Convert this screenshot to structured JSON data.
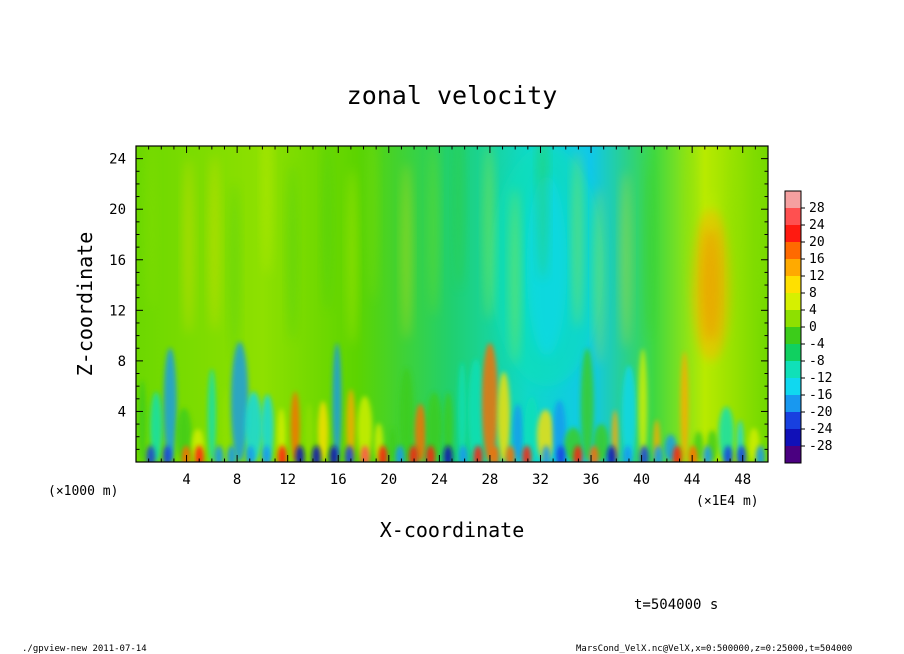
{
  "chart_data": {
    "type": "heatmap",
    "title": "zonal velocity",
    "xlabel": "X-coordinate",
    "ylabel": "Z-coordinate",
    "x_unit_note": "(×1E4 m)",
    "y_unit_note": "(×1000 m)",
    "xlim": [
      0,
      50
    ],
    "ylim": [
      0,
      25
    ],
    "x_ticks": [
      4,
      8,
      12,
      16,
      20,
      24,
      28,
      32,
      36,
      40,
      44,
      48
    ],
    "y_ticks": [
      4,
      8,
      12,
      16,
      20,
      24
    ],
    "colorbar_levels": [
      28,
      24,
      20,
      16,
      12,
      8,
      4,
      0,
      -4,
      -8,
      -12,
      -16,
      -20,
      -24,
      -28
    ],
    "colorbar_colors": [
      "#f5a0a0",
      "#ff5050",
      "#ff1a10",
      "#ff6a00",
      "#ffaa00",
      "#ffe000",
      "#d6f000",
      "#8ee000",
      "#3ccc1a",
      "#10d060",
      "#10e0b8",
      "#10d8f0",
      "#1898f0",
      "#1840e0",
      "#1010b8",
      "#4a0080"
    ],
    "features": [
      {
        "x_range": [
          28,
          37
        ],
        "z_range": [
          6,
          25
        ],
        "value_range": [
          -16,
          -8
        ],
        "description": "negative (blue) column"
      },
      {
        "x_range": [
          44,
          47
        ],
        "z_range": [
          8,
          20
        ],
        "value_range": [
          8,
          16
        ],
        "description": "positive (orange) column"
      },
      {
        "x_range": [
          0,
          50
        ],
        "z_range": [
          0,
          10
        ],
        "value_range": [
          -28,
          20
        ],
        "description": "alternating cells near surface"
      }
    ]
  },
  "annotations": {
    "time_label": "t=504000 s",
    "footer_left": "./gpview-new  2011-07-14",
    "footer_right": "MarsCond_VelX.nc@VelX,x=0:500000,z=0:25000,t=504000"
  }
}
